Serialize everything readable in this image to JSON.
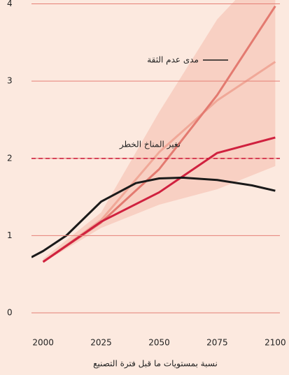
{
  "chart_data": {
    "type": "line",
    "xlabel": "نسبة بمستويات ما قبل فترة التصنيع",
    "xlim": [
      1995,
      2102
    ],
    "xticks": [
      2000,
      2025,
      2050,
      2075,
      2100
    ],
    "ylim": [
      0,
      4.05
    ],
    "yticks": [
      0,
      1,
      2,
      3,
      4
    ],
    "grid": true,
    "band": {
      "color": "#f6c4b6",
      "x": [
        2000,
        2025,
        2050,
        2075,
        2100
      ],
      "lower": [
        0.65,
        1.1,
        1.4,
        1.6,
        1.9
      ],
      "upper": [
        0.7,
        1.3,
        2.6,
        3.8,
        4.6
      ]
    },
    "threshold": {
      "value": 2,
      "label": "تغير المناخ الخطر",
      "color": "#d0213f"
    },
    "legend_label": "مدى عدم الثقة",
    "series": [
      {
        "color": "#f0a898",
        "x": [
          2000,
          2025,
          2050,
          2075,
          2100
        ],
        "values": [
          0.66,
          1.2,
          2.08,
          2.75,
          3.25
        ]
      },
      {
        "color": "#e37a70",
        "x": [
          2000,
          2025,
          2050,
          2075,
          2100
        ],
        "values": [
          0.66,
          1.17,
          1.86,
          2.82,
          3.97
        ]
      },
      {
        "color": "#d0213f",
        "x": [
          2000,
          2025,
          2050,
          2075,
          2100
        ],
        "values": [
          0.66,
          1.18,
          1.56,
          2.07,
          2.27
        ]
      },
      {
        "color": "#1a1a1a",
        "x": [
          1995,
          2000,
          2010,
          2025,
          2040,
          2050,
          2060,
          2075,
          2090,
          2100
        ],
        "values": [
          0.72,
          0.8,
          1.0,
          1.44,
          1.68,
          1.74,
          1.75,
          1.72,
          1.65,
          1.58
        ]
      }
    ]
  }
}
